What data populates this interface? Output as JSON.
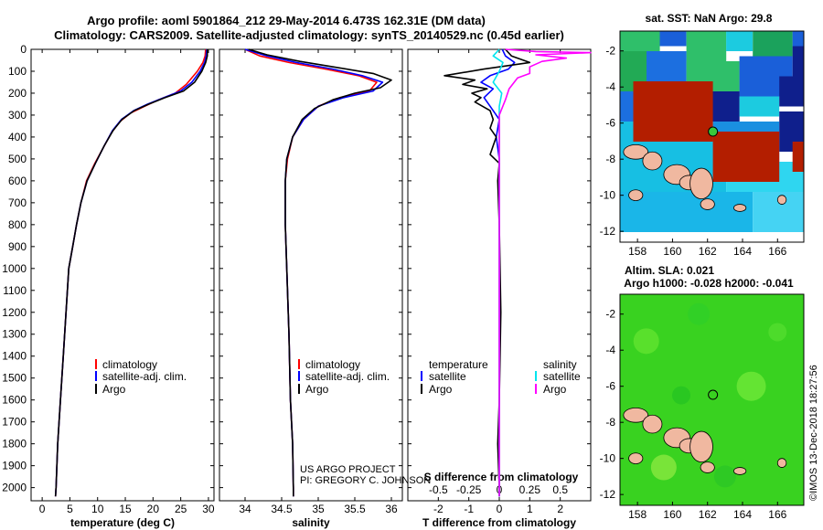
{
  "title": {
    "line1": "Argo profile: aoml 5901864_212 29-May-2014 6.473S 162.31E (DM data)",
    "line2": "Climatology: CARS2009. Satellite-adjusted climatology: synTS_20140529.nc (0.45d earlier)"
  },
  "depth_ticks": [
    0,
    100,
    200,
    300,
    400,
    500,
    600,
    700,
    800,
    900,
    1000,
    1100,
    1200,
    1300,
    1400,
    1500,
    1600,
    1700,
    1800,
    1900,
    2000
  ],
  "colors": {
    "climatology": "#ff0000",
    "satellite": "#0000ff",
    "argo": "#000000",
    "sat_salinity": "#00e5ee",
    "argo_salinity": "#ff00ff"
  },
  "chart_data": [
    {
      "type": "line",
      "id": "temperature",
      "xlabel": "temperature (deg C)",
      "ylabel": "depth",
      "xlim": [
        -2,
        31
      ],
      "ylim": [
        2060,
        0
      ],
      "xticks": [
        0,
        5,
        10,
        15,
        20,
        25,
        30
      ],
      "legend": [
        "climatology",
        "satellite-adj. clim.",
        "Argo"
      ],
      "series": [
        {
          "name": "climatology",
          "color": "#ff0000",
          "points": [
            [
              29.5,
              0
            ],
            [
              29.4,
              30
            ],
            [
              29.0,
              60
            ],
            [
              28.0,
              100
            ],
            [
              26.0,
              160
            ],
            [
              24.0,
              200
            ],
            [
              21.0,
              230
            ],
            [
              18.5,
              260
            ],
            [
              16.0,
              290
            ],
            [
              14.0,
              330
            ],
            [
              12.5,
              380
            ],
            [
              11.0,
              450
            ],
            [
              9.5,
              520
            ],
            [
              8.0,
              600
            ],
            [
              7.0,
              700
            ],
            [
              6.2,
              800
            ],
            [
              5.5,
              900
            ],
            [
              4.8,
              1000
            ],
            [
              4.3,
              1200
            ],
            [
              3.8,
              1400
            ],
            [
              3.3,
              1600
            ],
            [
              2.8,
              1800
            ],
            [
              2.5,
              2000
            ],
            [
              2.4,
              2040
            ]
          ]
        },
        {
          "name": "satellite-adj. clim.",
          "color": "#0000ff",
          "points": [
            [
              29.7,
              0
            ],
            [
              29.6,
              30
            ],
            [
              29.3,
              60
            ],
            [
              28.5,
              100
            ],
            [
              27.0,
              150
            ],
            [
              25.0,
              190
            ],
            [
              22.0,
              220
            ],
            [
              19.0,
              250
            ],
            [
              16.5,
              280
            ],
            [
              14.3,
              320
            ],
            [
              12.7,
              370
            ],
            [
              11.2,
              440
            ],
            [
              9.6,
              520
            ],
            [
              8.1,
              600
            ],
            [
              7.0,
              700
            ],
            [
              6.2,
              800
            ],
            [
              5.5,
              900
            ],
            [
              4.8,
              1000
            ],
            [
              4.3,
              1200
            ],
            [
              3.8,
              1400
            ],
            [
              3.3,
              1600
            ],
            [
              2.8,
              1800
            ],
            [
              2.5,
              2000
            ],
            [
              2.4,
              2040
            ]
          ]
        },
        {
          "name": "Argo",
          "color": "#000000",
          "points": [
            [
              29.8,
              0
            ],
            [
              29.8,
              30
            ],
            [
              29.5,
              60
            ],
            [
              28.8,
              100
            ],
            [
              27.5,
              150
            ],
            [
              25.5,
              190
            ],
            [
              22.2,
              220
            ],
            [
              19.2,
              250
            ],
            [
              16.6,
              280
            ],
            [
              14.4,
              320
            ],
            [
              12.8,
              370
            ],
            [
              11.2,
              440
            ],
            [
              9.6,
              520
            ],
            [
              8.1,
              600
            ],
            [
              7.0,
              700
            ],
            [
              6.2,
              800
            ],
            [
              5.5,
              900
            ],
            [
              4.8,
              1000
            ],
            [
              4.3,
              1200
            ],
            [
              3.8,
              1400
            ],
            [
              3.3,
              1600
            ],
            [
              2.8,
              1800
            ],
            [
              2.5,
              2000
            ],
            [
              2.4,
              2040
            ]
          ]
        }
      ]
    },
    {
      "type": "line",
      "id": "salinity",
      "xlabel": "salinity",
      "ylabel": "depth",
      "xlim": [
        33.65,
        36.15
      ],
      "ylim": [
        2060,
        0
      ],
      "xticks": [
        34,
        34.5,
        35,
        35.5,
        36
      ],
      "xticklabels": [
        "34",
        "34.5",
        "35",
        "35.5",
        "36"
      ],
      "legend": [
        "climatology",
        "satellite-adj. clim.",
        "Argo"
      ],
      "series": [
        {
          "name": "climatology",
          "color": "#ff0000",
          "points": [
            [
              34.0,
              0
            ],
            [
              34.2,
              30
            ],
            [
              34.6,
              60
            ],
            [
              35.1,
              90
            ],
            [
              35.55,
              120
            ],
            [
              35.8,
              150
            ],
            [
              35.7,
              190
            ],
            [
              35.3,
              220
            ],
            [
              35.0,
              260
            ],
            [
              34.8,
              320
            ],
            [
              34.65,
              400
            ],
            [
              34.58,
              500
            ],
            [
              34.55,
              600
            ],
            [
              34.55,
              800
            ],
            [
              34.57,
              1000
            ],
            [
              34.6,
              1300
            ],
            [
              34.62,
              1600
            ],
            [
              34.65,
              1800
            ],
            [
              34.66,
              2000
            ],
            [
              34.66,
              2040
            ]
          ]
        },
        {
          "name": "satellite-adj. clim.",
          "color": "#0000ff",
          "points": [
            [
              34.0,
              0
            ],
            [
              34.3,
              30
            ],
            [
              34.7,
              60
            ],
            [
              35.2,
              90
            ],
            [
              35.6,
              120
            ],
            [
              35.88,
              150
            ],
            [
              35.75,
              190
            ],
            [
              35.35,
              220
            ],
            [
              35.0,
              260
            ],
            [
              34.8,
              320
            ],
            [
              34.65,
              400
            ],
            [
              34.57,
              500
            ],
            [
              34.55,
              600
            ],
            [
              34.55,
              800
            ],
            [
              34.57,
              1000
            ],
            [
              34.6,
              1300
            ],
            [
              34.62,
              1600
            ],
            [
              34.65,
              1800
            ],
            [
              34.66,
              2000
            ],
            [
              34.66,
              2040
            ]
          ]
        },
        {
          "name": "Argo",
          "color": "#000000",
          "points": [
            [
              34.05,
              0
            ],
            [
              34.3,
              25
            ],
            [
              34.75,
              55
            ],
            [
              35.3,
              85
            ],
            [
              35.75,
              110
            ],
            [
              36.0,
              140
            ],
            [
              35.85,
              175
            ],
            [
              35.5,
              200
            ],
            [
              35.2,
              230
            ],
            [
              34.95,
              270
            ],
            [
              34.78,
              320
            ],
            [
              34.65,
              400
            ],
            [
              34.57,
              500
            ],
            [
              34.55,
              600
            ],
            [
              34.55,
              800
            ],
            [
              34.57,
              1000
            ],
            [
              34.6,
              1300
            ],
            [
              34.62,
              1600
            ],
            [
              34.65,
              1800
            ],
            [
              34.66,
              2000
            ],
            [
              34.66,
              2040
            ]
          ]
        }
      ]
    },
    {
      "type": "line",
      "id": "differences",
      "xlabel": "T difference from climatology",
      "x2label": "S difference from climatology",
      "ylabel": "depth",
      "xlim": [
        -3.0,
        3.0
      ],
      "ylim": [
        2060,
        0
      ],
      "xticks": [
        -2,
        -1,
        0,
        1,
        2
      ],
      "x2ticks": [
        -0.5,
        -0.25,
        0,
        0.25,
        0.5
      ],
      "x2ticklabels": [
        "-0.5",
        "-0.25",
        "0",
        "0.25",
        "0.5"
      ],
      "legend_left_title": "temperature",
      "legend_right_title": "salinity",
      "legend": [
        "satellite",
        "Argo",
        "satellite",
        "Argo"
      ],
      "series": [
        {
          "name": "T satellite",
          "color": "#0000ff",
          "points": [
            [
              0.1,
              0
            ],
            [
              0.2,
              30
            ],
            [
              0.5,
              60
            ],
            [
              0.3,
              90
            ],
            [
              -0.3,
              120
            ],
            [
              -0.6,
              150
            ],
            [
              -0.2,
              180
            ],
            [
              -0.5,
              220
            ],
            [
              -0.3,
              260
            ],
            [
              0.0,
              320
            ],
            [
              -0.1,
              400
            ],
            [
              0.0,
              500
            ],
            [
              0.0,
              700
            ],
            [
              0.0,
              1000
            ],
            [
              0.0,
              1500
            ],
            [
              0.0,
              2000
            ],
            [
              0.0,
              2040
            ]
          ]
        },
        {
          "name": "T Argo",
          "color": "#000000",
          "points": [
            [
              0.2,
              0
            ],
            [
              0.4,
              30
            ],
            [
              1.0,
              60
            ],
            [
              -0.5,
              90
            ],
            [
              -1.8,
              120
            ],
            [
              -0.8,
              140
            ],
            [
              -1.2,
              160
            ],
            [
              -0.4,
              180
            ],
            [
              -0.9,
              200
            ],
            [
              -0.6,
              220
            ],
            [
              -0.8,
              240
            ],
            [
              -0.3,
              280
            ],
            [
              -0.2,
              320
            ],
            [
              -0.3,
              360
            ],
            [
              -0.1,
              400
            ],
            [
              -0.2,
              440
            ],
            [
              -0.3,
              480
            ],
            [
              0.0,
              520
            ],
            [
              -0.05,
              600
            ],
            [
              0.0,
              800
            ],
            [
              0.05,
              1200
            ],
            [
              0.0,
              1600
            ],
            [
              -0.05,
              1800
            ],
            [
              0.0,
              2000
            ],
            [
              0.0,
              2040
            ]
          ]
        },
        {
          "name": "S satellite",
          "color": "#00e5ee",
          "points": [
            [
              0.0,
              0
            ],
            [
              -0.05,
              30
            ],
            [
              0.03,
              60
            ],
            [
              0.0,
              100
            ],
            [
              -0.05,
              150
            ],
            [
              0.02,
              200
            ],
            [
              0.0,
              260
            ],
            [
              0.0,
              400
            ],
            [
              0.0,
              800
            ],
            [
              0.0,
              1200
            ],
            [
              0.0,
              1600
            ],
            [
              0.0,
              2000
            ],
            [
              0.0,
              2040
            ]
          ]
        },
        {
          "name": "S Argo",
          "color": "#ff00ff",
          "points": [
            [
              0.05,
              0
            ],
            [
              0.3,
              10
            ],
            [
              0.75,
              15
            ],
            [
              0.3,
              25
            ],
            [
              0.55,
              40
            ],
            [
              0.35,
              55
            ],
            [
              0.25,
              80
            ],
            [
              0.25,
              110
            ],
            [
              0.15,
              130
            ],
            [
              0.08,
              180
            ],
            [
              0.05,
              230
            ],
            [
              0.0,
              300
            ],
            [
              0.0,
              600
            ],
            [
              0.0,
              1000
            ],
            [
              0.0,
              1500
            ],
            [
              0.0,
              2000
            ],
            [
              0.0,
              2040
            ]
          ]
        }
      ]
    }
  ],
  "maps": {
    "top_title": "sat. SST: NaN Argo: 29.8",
    "bottom_title_line1": "Altim. SLA: 0.021",
    "bottom_title_line2": "Argo h1000: -0.028 h2000: -0.041",
    "yticks": [
      -2,
      -4,
      -6,
      -8,
      -10,
      -12
    ],
    "xticks": [
      158,
      160,
      162,
      164,
      166
    ],
    "lon_range": [
      157.0,
      167.5
    ],
    "lat_range": [
      -12.6,
      -0.9
    ],
    "argo_lon": 162.31,
    "argo_lat": -6.473
  },
  "credits": {
    "line1": "US ARGO PROJECT",
    "line2": "PI: GREGORY C. JOHNSON"
  },
  "timestamp": "©IMOS 13-Dec-2018 18:27:56"
}
